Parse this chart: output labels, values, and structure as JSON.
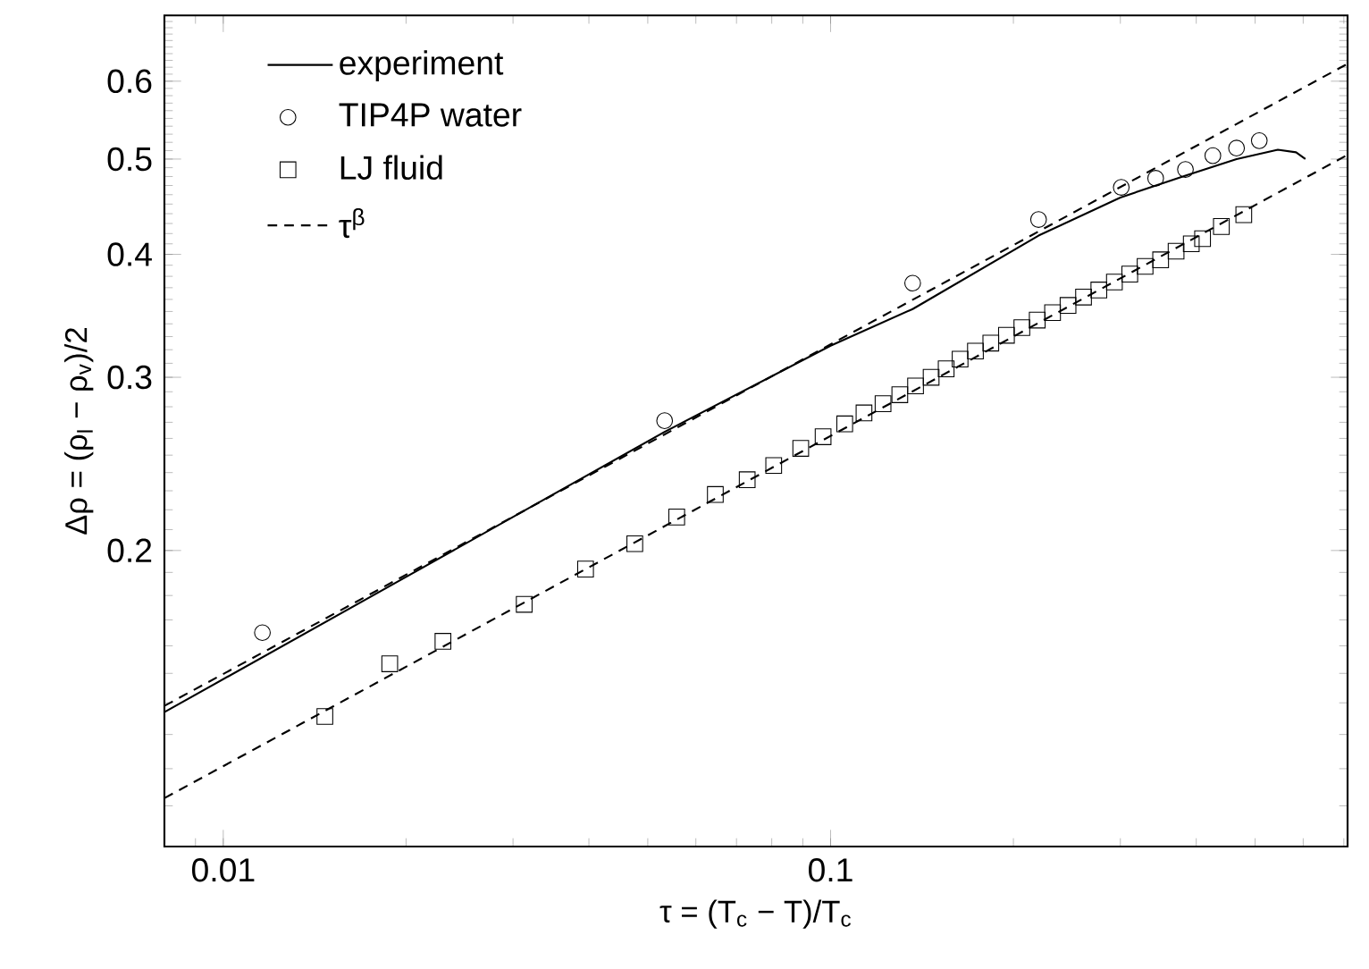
{
  "chart_data": {
    "type": "line",
    "xlabel": "τ = (T$_{c}$ − T)/T$_{c}$",
    "ylabel": "Δρ = (ρ$_{l}$ − ρ$_{v}$)/2",
    "log": "xy",
    "legend": "top left",
    "xlim": [
      0.008,
      0.71
    ],
    "ylim": [
      0.1,
      0.7
    ],
    "xticks": [
      0.01,
      0.1
    ],
    "yticks": [
      0.2,
      0.3,
      0.4,
      0.5,
      0.6
    ],
    "series": [
      {
        "name": "experiment",
        "color": "#000000",
        "line_style": "solid",
        "marker": "none",
        "x": [
          0.008,
          0.02,
          0.0533,
          0.1,
          0.1365,
          0.22,
          0.3,
          0.384,
          0.466,
          0.545,
          0.584,
          0.605
        ],
        "values": [
          0.137,
          0.188,
          0.264,
          0.323,
          0.352,
          0.418,
          0.457,
          0.481,
          0.5,
          0.511,
          0.508,
          0.5
        ]
      },
      {
        "name": "TIP4P water",
        "type": "scatter",
        "color": "#000000",
        "marker": "circle",
        "x": [
          0.0116,
          0.0533,
          0.1365,
          0.22,
          0.301,
          0.343,
          0.384,
          0.426,
          0.466,
          0.508
        ],
        "values": [
          0.165,
          0.271,
          0.374,
          0.434,
          0.468,
          0.478,
          0.488,
          0.504,
          0.513,
          0.522
        ]
      },
      {
        "name": "LJ fluid",
        "type": "scatter",
        "color": "#000000",
        "marker": "square",
        "x": [
          0.0147,
          0.0188,
          0.023,
          0.0313,
          0.0395,
          0.0476,
          0.0558,
          0.0646,
          0.0729,
          0.0806,
          0.0893,
          0.0972,
          0.1055,
          0.1135,
          0.122,
          0.13,
          0.138,
          0.1464,
          0.155,
          0.1634,
          0.1732,
          0.1836,
          0.1948,
          0.2065,
          0.2189,
          0.232,
          0.246,
          0.2609,
          0.2765,
          0.2933,
          0.3109,
          0.3295,
          0.3495,
          0.3706,
          0.3926,
          0.4097,
          0.44,
          0.479
        ],
        "values": [
          0.1356,
          0.1534,
          0.1617,
          0.1763,
          0.1915,
          0.2032,
          0.2163,
          0.228,
          0.236,
          0.244,
          0.254,
          0.261,
          0.269,
          0.276,
          0.282,
          0.288,
          0.294,
          0.3,
          0.306,
          0.313,
          0.319,
          0.325,
          0.331,
          0.337,
          0.343,
          0.349,
          0.355,
          0.362,
          0.368,
          0.375,
          0.382,
          0.389,
          0.395,
          0.403,
          0.41,
          0.415,
          0.427,
          0.439
        ]
      },
      {
        "name": "τ$^{β}$",
        "color": "#000000",
        "line_style": "dashed",
        "marker": "none",
        "x": [
          0.008,
          0.71
        ],
        "values": [
          0.139,
          0.625
        ]
      },
      {
        "color": "#000000",
        "line_style": "dashed",
        "marker": "none",
        "x": [
          0.008,
          0.71
        ],
        "values": [
          0.112,
          0.505
        ]
      }
    ]
  }
}
